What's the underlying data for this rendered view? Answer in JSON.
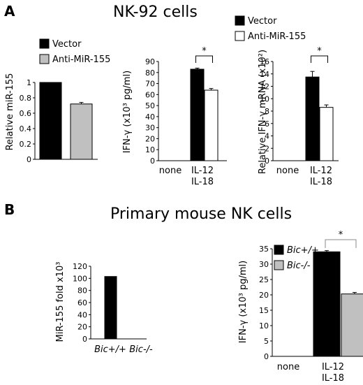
{
  "panels": {
    "A": {
      "letter": "A",
      "title": "NK-92 cells"
    },
    "B": {
      "letter": "B",
      "title": "Primary mouse NK cells"
    }
  },
  "colors": {
    "black": "#000000",
    "gray": "#c0c0c0",
    "white": "#ffffff"
  },
  "chart_data": [
    {
      "id": "a1",
      "type": "bar",
      "ylabel": "Relative miR-155",
      "ylim": [
        0,
        1
      ],
      "yticks": [
        "0",
        "0.2",
        "0.4",
        "0.6",
        "0.8",
        "1"
      ],
      "categories": [],
      "legend": [
        {
          "label": "Vector",
          "color": "#000000"
        },
        {
          "label": "Anti-MiR-155",
          "color": "#c0c0c0"
        }
      ],
      "bars": [
        {
          "value": 1.0,
          "error": 0,
          "color": "#000000"
        },
        {
          "value": 0.72,
          "error": 0.02,
          "color": "#c0c0c0"
        }
      ]
    },
    {
      "id": "a2",
      "type": "bar",
      "ylabel": "IFN-γ (x10³ pg/ml)",
      "ylim": [
        0,
        90
      ],
      "yticks": [
        "0",
        "10",
        "20",
        "30",
        "40",
        "50",
        "60",
        "70",
        "80",
        "90"
      ],
      "categories": [
        "none",
        "IL-12\nIL-18"
      ],
      "legend": [],
      "significance": "*",
      "bars": [
        {
          "value": 83,
          "error": 1,
          "color": "#000000"
        },
        {
          "value": 64,
          "error": 1.5,
          "color": "#ffffff"
        }
      ]
    },
    {
      "id": "a3",
      "type": "bar",
      "ylabel": "Relative IFN-γ mRNA (x10²)",
      "ylim": [
        0,
        16
      ],
      "yticks": [
        "0",
        "2",
        "4",
        "6",
        "8",
        "10",
        "12",
        "14",
        "16"
      ],
      "categories": [
        "none",
        "IL-12\nIL-18"
      ],
      "legend": [
        {
          "label": "Vector",
          "color": "#000000"
        },
        {
          "label": "Anti-MiR-155",
          "color": "#ffffff"
        }
      ],
      "significance": "*",
      "bars": [
        {
          "value": 13.5,
          "error": 0.9,
          "color": "#000000"
        },
        {
          "value": 8.6,
          "error": 0.4,
          "color": "#ffffff"
        }
      ]
    },
    {
      "id": "b1",
      "type": "bar",
      "ylabel": "MiR-155 fold x10³",
      "ylim": [
        0,
        120
      ],
      "yticks": [
        "0",
        "20",
        "40",
        "60",
        "80",
        "100",
        "120"
      ],
      "categories": [
        "Bic+/+",
        "Bic-/-"
      ],
      "legend": [],
      "bars": [
        {
          "value": 103,
          "error": 0,
          "color": "#000000"
        },
        {
          "value": 0,
          "error": 0,
          "color": "#000000"
        }
      ]
    },
    {
      "id": "b2",
      "type": "bar",
      "ylabel": "IFN-γ (x10³ pg/ml)",
      "ylim": [
        0,
        35
      ],
      "yticks": [
        "0",
        "5",
        "10",
        "15",
        "20",
        "25",
        "30",
        "35"
      ],
      "categories": [
        "none",
        "IL-12\nIL-18"
      ],
      "legend": [
        {
          "label": "Bic+/+",
          "color": "#000000"
        },
        {
          "label": "Bic-/-",
          "color": "#c0c0c0"
        }
      ],
      "significance": "*",
      "bars": [
        {
          "value": 34,
          "error": 0.4,
          "color": "#000000"
        },
        {
          "value": 20.3,
          "error": 0.5,
          "color": "#c0c0c0"
        }
      ]
    }
  ]
}
